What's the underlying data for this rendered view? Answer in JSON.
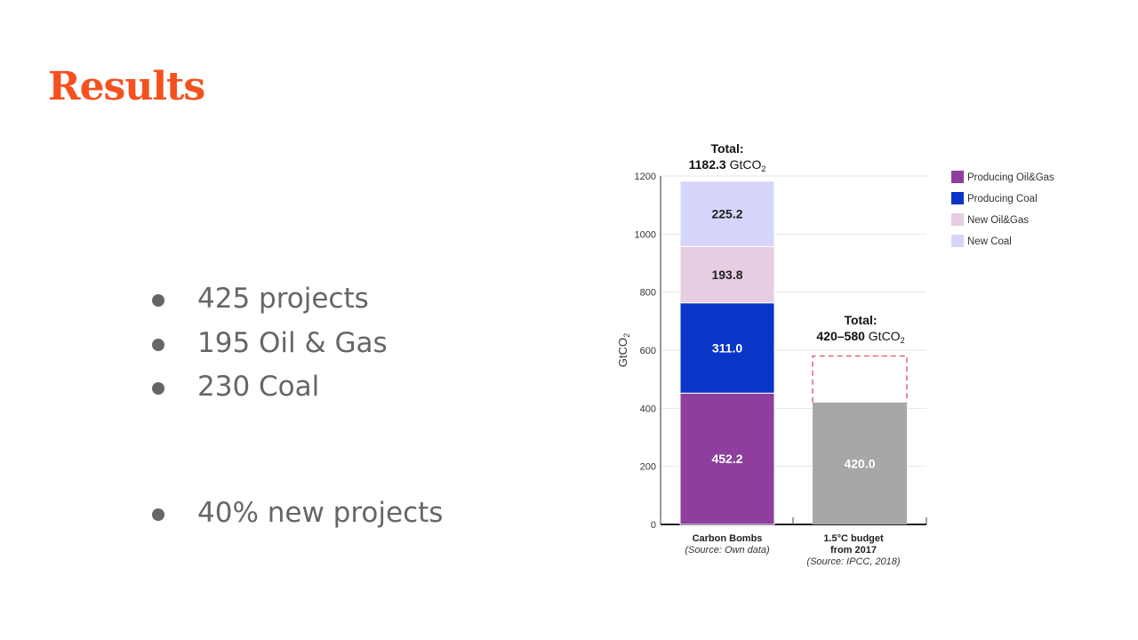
{
  "slide": {
    "title": "Results",
    "bullets_top": [
      "425 projects",
      "195 Oil & Gas",
      "230 Coal"
    ],
    "bullets_bottom": [
      "40% new projects"
    ]
  },
  "chart_data": {
    "type": "bar",
    "stacked": true,
    "ylabel": "GtCO",
    "ylabel_sub": "2",
    "ylim": [
      0,
      1200
    ],
    "yticks": [
      0,
      200,
      400,
      600,
      800,
      1000,
      1200
    ],
    "grid": true,
    "legend_position": "right",
    "categories": [
      {
        "label_lines": [
          "Carbon Bombs"
        ],
        "source": "(Source: Own data)"
      },
      {
        "label_lines": [
          "1.5°C budget",
          "from 2017"
        ],
        "source": "(Source: IPCC, 2018)"
      }
    ],
    "series": [
      {
        "name": "Producing Oil&Gas",
        "color": "#8e3f9e",
        "values": [
          452.2,
          null
        ]
      },
      {
        "name": "Producing Coal",
        "color": "#0a36c8",
        "values": [
          311.0,
          null
        ]
      },
      {
        "name": "New Oil&Gas",
        "color": "#e7cde2",
        "values": [
          193.8,
          null
        ]
      },
      {
        "name": "New Coal",
        "color": "#d6d5fb",
        "values": [
          225.2,
          null
        ]
      }
    ],
    "budget": {
      "value": 420.0,
      "label": "420.0",
      "range": [
        420,
        580
      ],
      "color": "#a8a7a8",
      "range_color": "#e0525a"
    },
    "totals": [
      {
        "line1": "Total:",
        "value": "1182.3",
        "unit": "GtCO",
        "unit_sub": "2"
      },
      {
        "line1": "Total:",
        "value": "420–580",
        "unit": "GtCO",
        "unit_sub": "2"
      }
    ],
    "value_labels": [
      "452.2",
      "311.0",
      "193.8",
      "225.2"
    ]
  }
}
